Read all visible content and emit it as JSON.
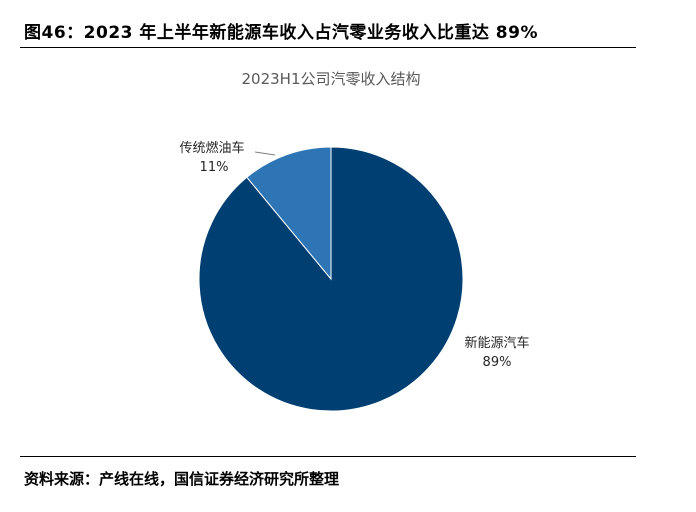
{
  "figure": {
    "title": "图46：2023 年上半年新能源车收入占汽零业务收入比重达 89%",
    "source": "资料来源：产线在线，国信证券经济研究所整理"
  },
  "chart_data": {
    "type": "pie",
    "title": "2023H1公司汽零收入结构",
    "slices": [
      {
        "name": "新能源汽车",
        "value": 89,
        "label": "89%",
        "color": "#003F72"
      },
      {
        "name": "传统燃油车",
        "value": 11,
        "label": "11%",
        "color": "#2E75B6"
      }
    ],
    "legend": "none",
    "start_angle": "12 o'clock",
    "direction": "clockwise"
  }
}
